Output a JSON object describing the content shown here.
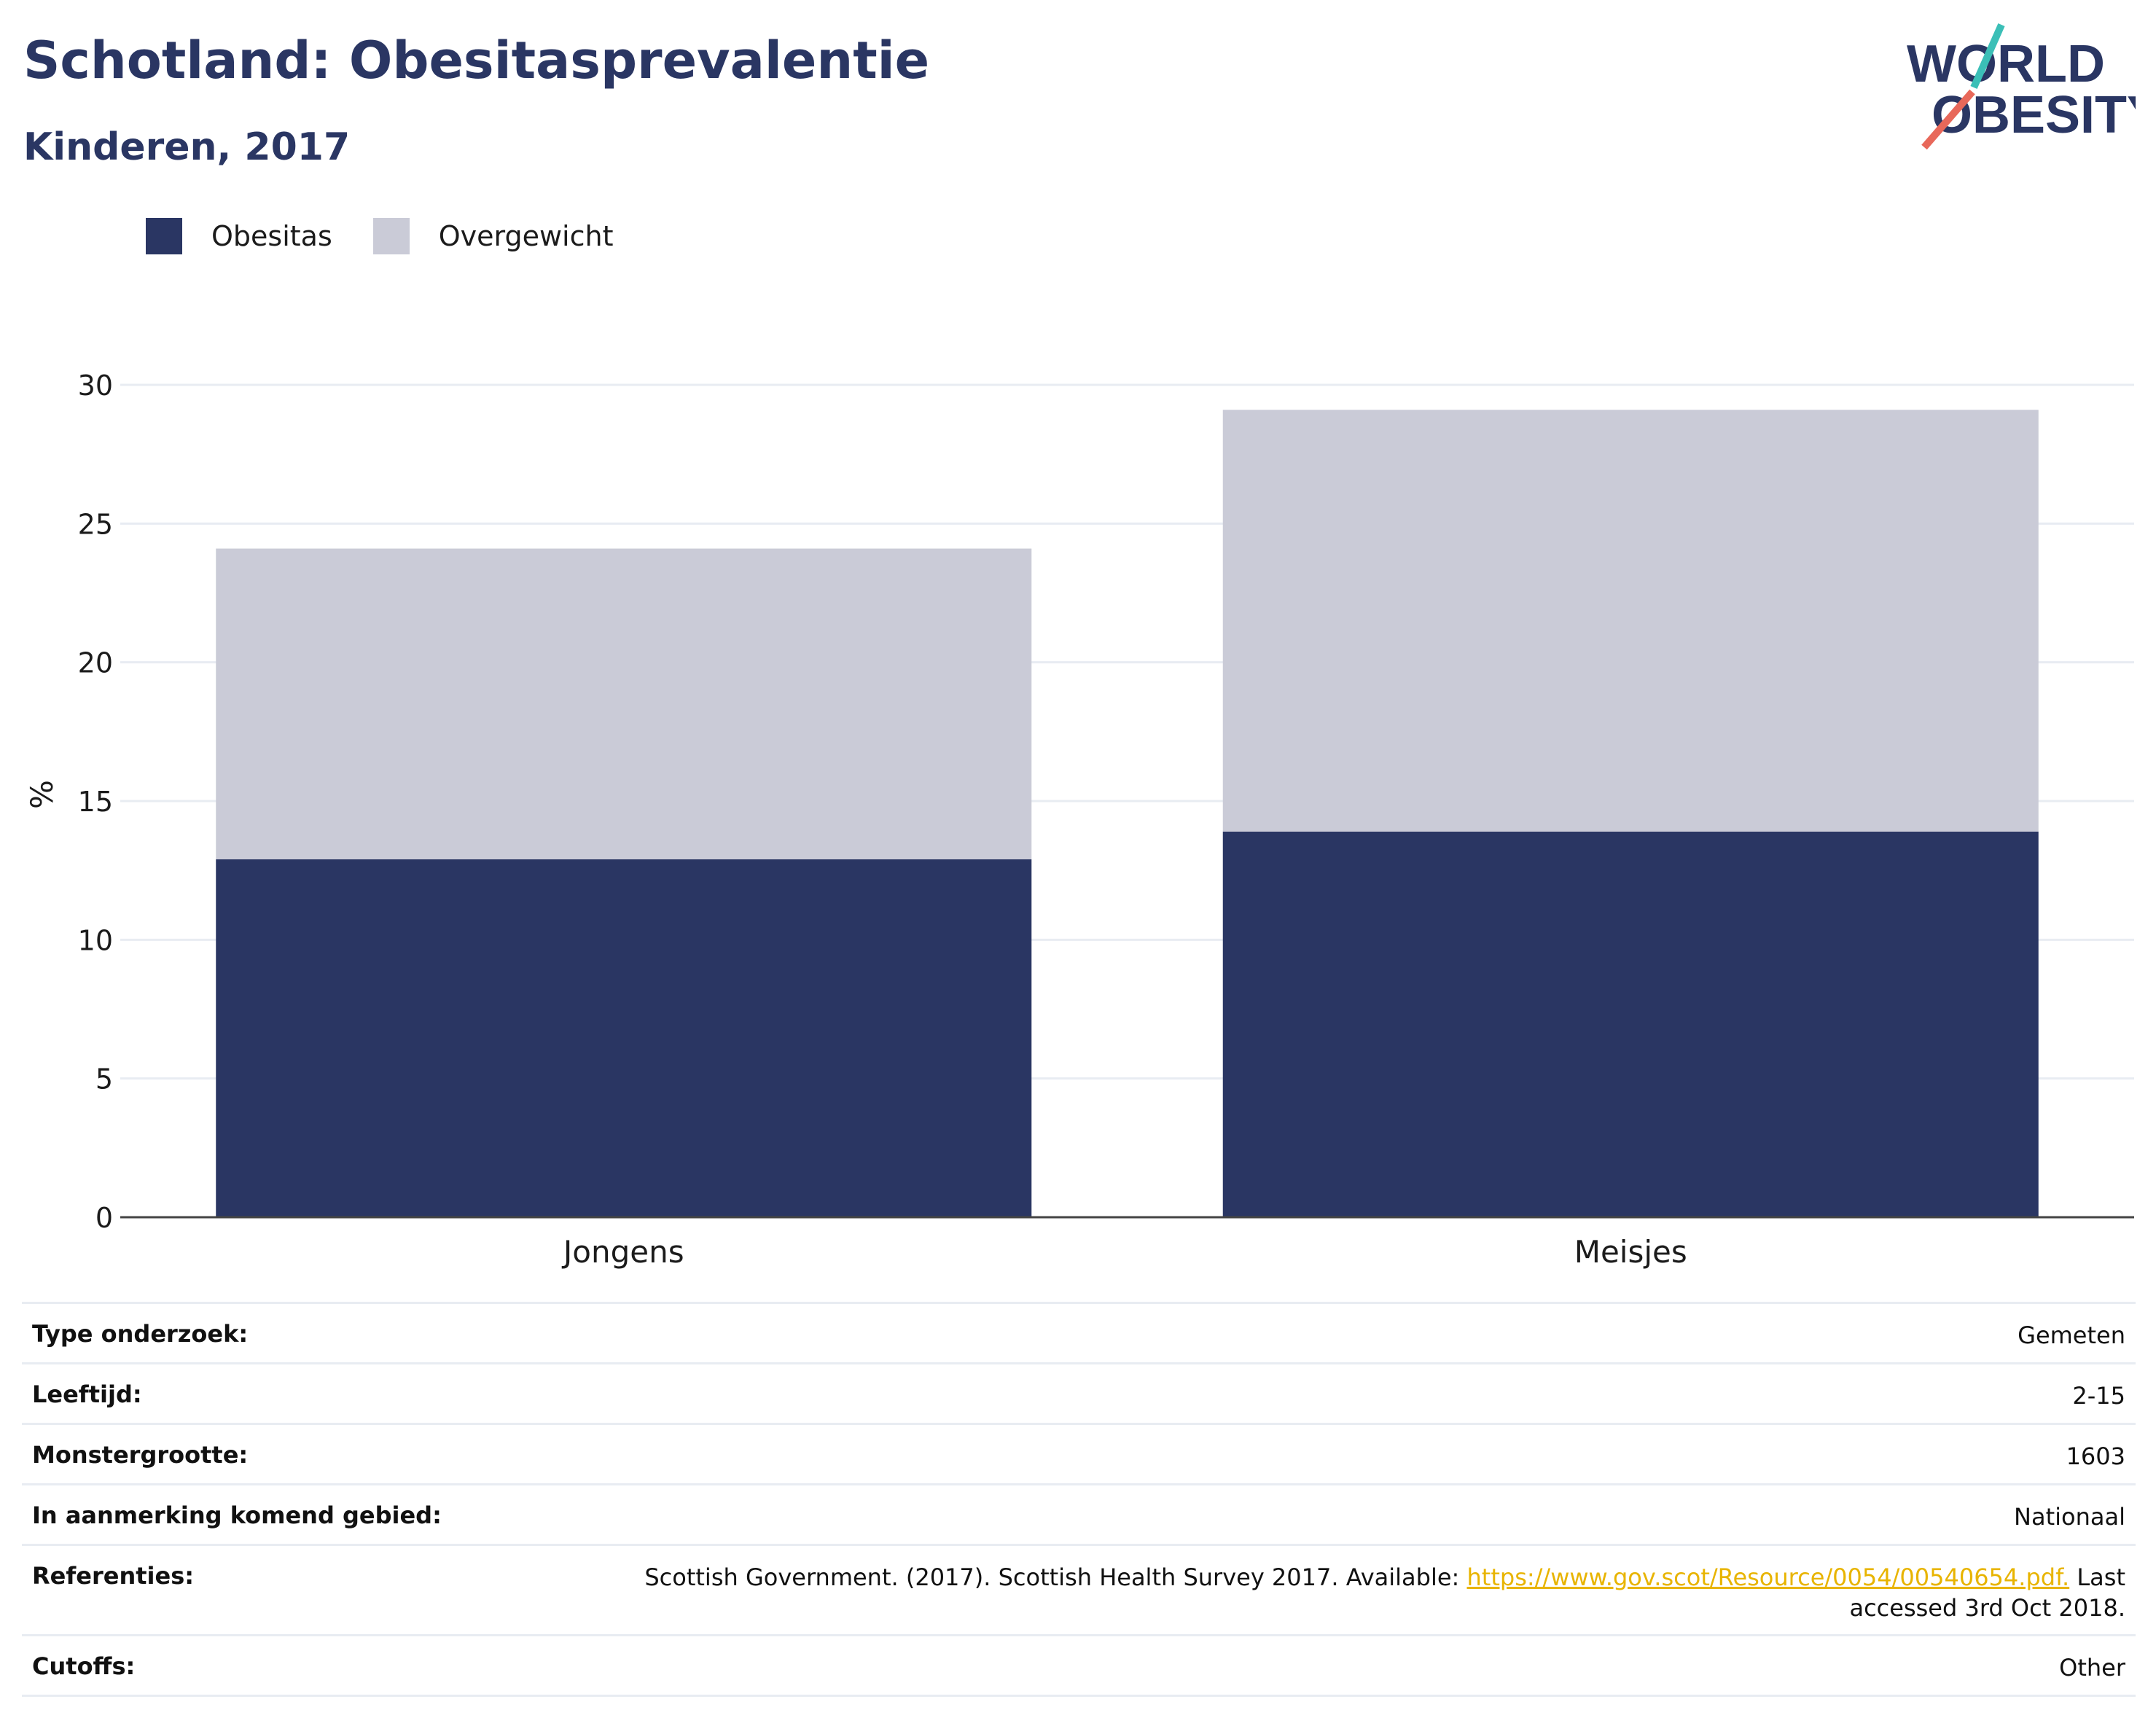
{
  "header": {
    "title": "Schotland: Obesitasprevalentie",
    "subtitle": "Kinderen, 2017"
  },
  "logo": {
    "line1": "WORLD",
    "line2": "OBESITY",
    "accent_colors": [
      "#3bbfb7",
      "#e8685a"
    ]
  },
  "legend": [
    {
      "label": "Obesitas",
      "color": "#2a3663"
    },
    {
      "label": "Overgewicht",
      "color": "#cacbd7"
    }
  ],
  "chart_data": {
    "type": "bar",
    "stacked": true,
    "categories": [
      "Jongens",
      "Meisjes"
    ],
    "series": [
      {
        "name": "Obesitas",
        "values": [
          12.9,
          13.9
        ],
        "color": "#2a3663"
      },
      {
        "name": "Overgewicht",
        "values": [
          11.2,
          15.2
        ],
        "color": "#cacbd7"
      }
    ],
    "ylabel": "%",
    "ylim": [
      0,
      30
    ],
    "yticks": [
      0,
      5,
      10,
      15,
      20,
      25,
      30
    ],
    "grid": true
  },
  "info": {
    "study_type_label": "Type onderzoek:",
    "study_type_value": "Gemeten",
    "age_label": "Leeftijd:",
    "age_value": "2-15",
    "sample_size_label": "Monstergrootte:",
    "sample_size_value": "1603",
    "area_label": "In aanmerking komend gebied:",
    "area_value": "Nationaal",
    "references_label": "Referenties:",
    "references_text_before": "Scottish Government. (2017). Scottish Health Survey 2017. Available: ",
    "references_link": "https://www.gov.scot/Resource/0054/00540654.pdf.",
    "references_text_after_line1": " Last",
    "references_text_after_line2": "accessed 3rd Oct 2018.",
    "cutoffs_label": "Cutoffs:",
    "cutoffs_value": "Other"
  }
}
